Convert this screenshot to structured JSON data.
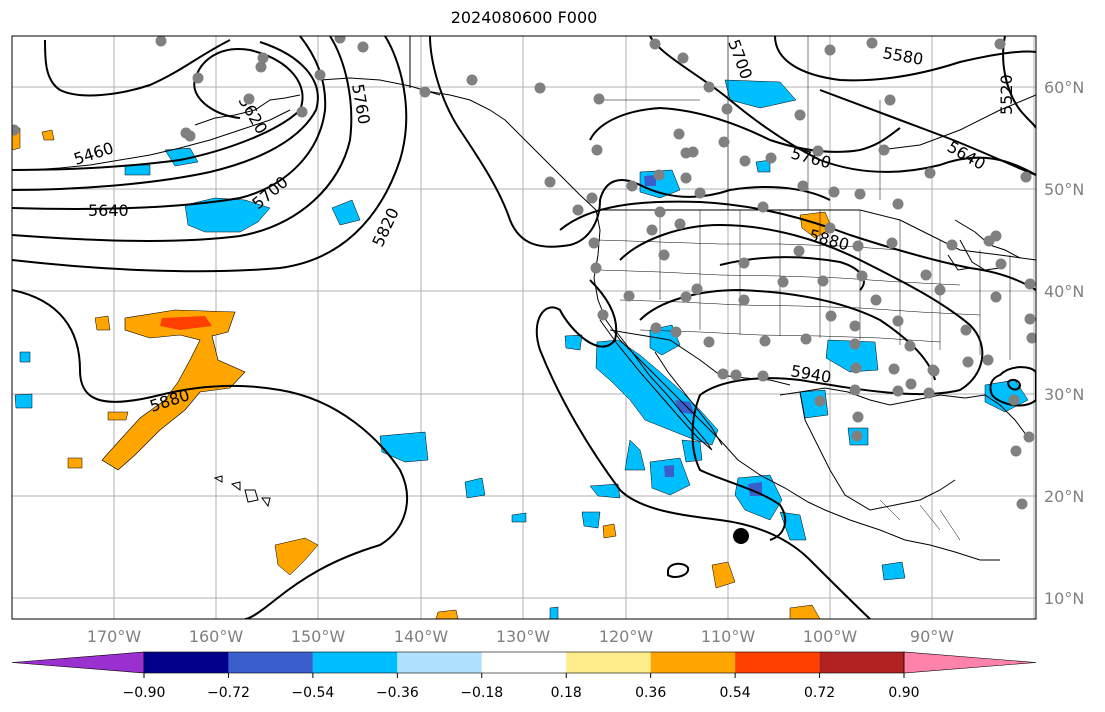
{
  "title": "2024080600 F000",
  "lon_labels": [
    "170°W",
    "160°W",
    "150°W",
    "140°W",
    "130°W",
    "120°W",
    "110°W",
    "100°W",
    "90°W"
  ],
  "lat_labels": [
    "60°N",
    "50°N",
    "40°N",
    "30°N",
    "20°N",
    "10°N"
  ],
  "contour_labels": [
    "5460",
    "5640",
    "5700",
    "5760",
    "5820",
    "5880",
    "5940",
    "5700",
    "5760",
    "5580",
    "5520",
    "5640",
    "5880",
    "5620"
  ],
  "colorbar": {
    "ticks": [
      "−0.90",
      "−0.72",
      "−0.54",
      "−0.36",
      "−0.18",
      "0.18",
      "0.36",
      "0.54",
      "0.72",
      "0.90"
    ],
    "colors": [
      "#9b30d0",
      "#00008b",
      "#3a5fcd",
      "#00bfff",
      "#b0e2ff",
      "#ffffff",
      "#ffec8b",
      "#ffa500",
      "#ff4000",
      "#b22222",
      "#ff82ab"
    ]
  },
  "colors": {
    "contour": "#000000",
    "station": "#808080",
    "grid": "#b0b0b0",
    "axis_label": "#808080"
  },
  "map": {
    "projection": "plate carree",
    "lon_range": [
      "180°W",
      "80°W"
    ],
    "lat_range": [
      "8°N",
      "65°N"
    ],
    "station_symbol": "gray dot",
    "storm_marker": "black dot"
  }
}
